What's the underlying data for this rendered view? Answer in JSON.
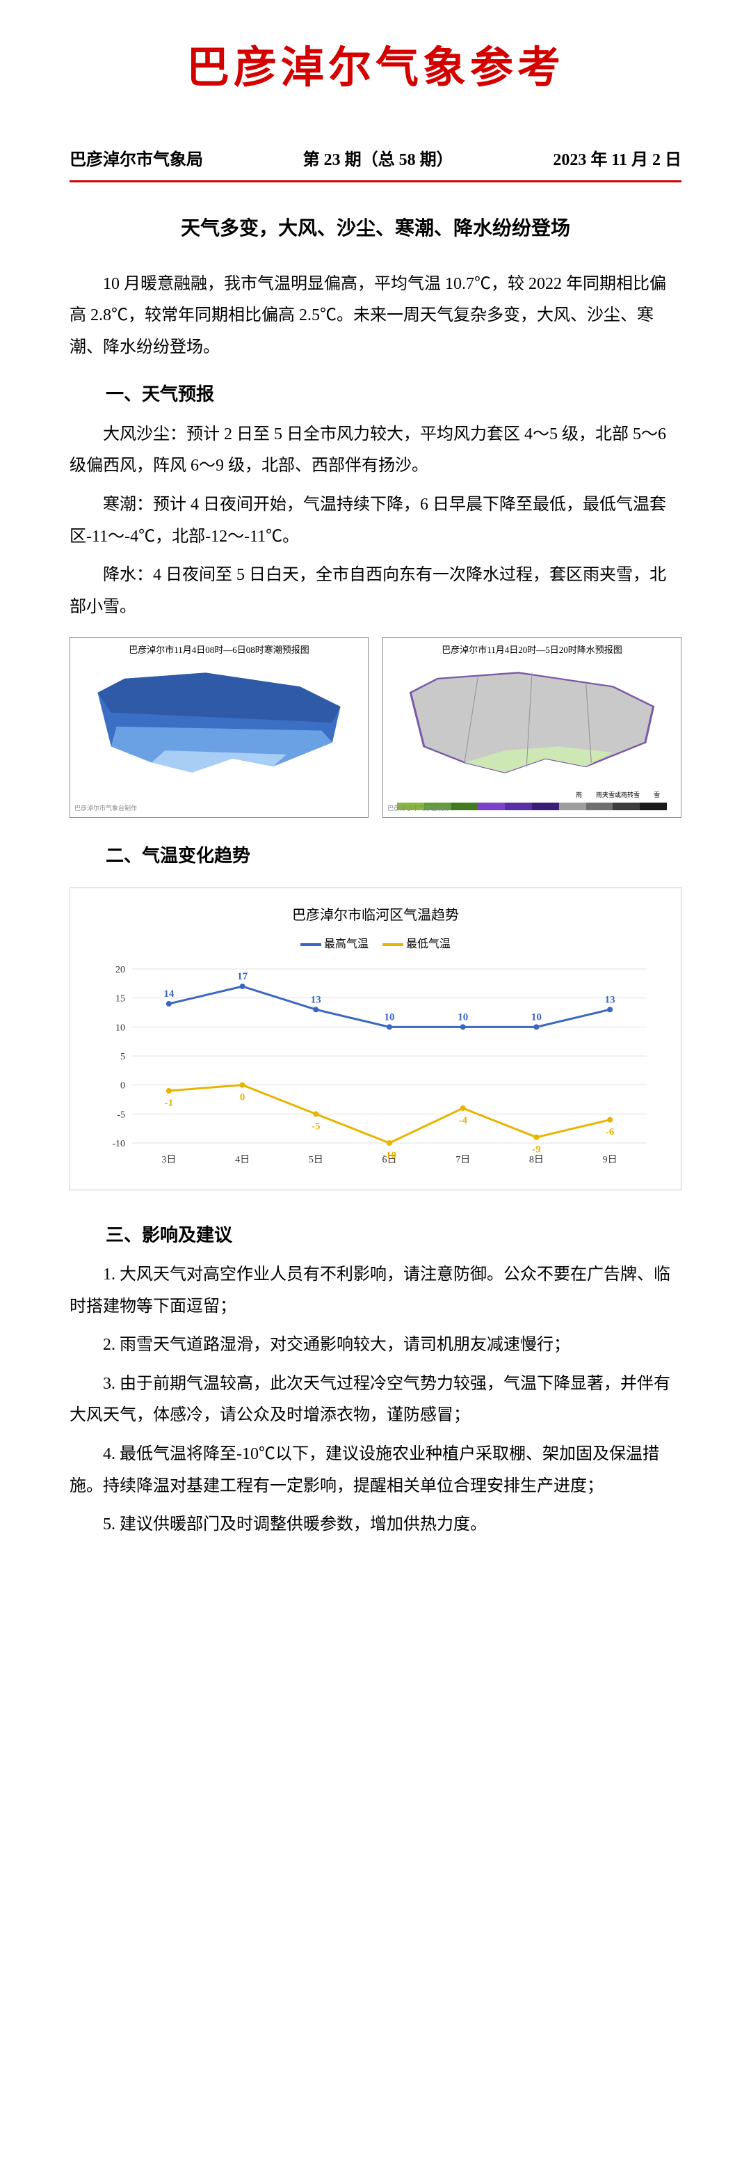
{
  "title": "巴彦淖尔气象参考",
  "meta": {
    "dept": "巴彦淖尔市气象局",
    "issue": "第 23 期（总 58 期）",
    "date": "2023 年 11 月 2 日"
  },
  "headline": "天气多变，大风、沙尘、寒潮、降水纷纷登场",
  "intro": "10 月暖意融融，我市气温明显偏高，平均气温 10.7℃，较 2022 年同期相比偏高 2.8℃，较常年同期相比偏高 2.5℃。未来一周天气复杂多变，大风、沙尘、寒潮、降水纷纷登场。",
  "sec1_heading": "一、天气预报",
  "sec1_p1": "大风沙尘：预计 2 日至 5 日全市风力较大，平均风力套区 4～5 级，北部 5～6 级偏西风，阵风 6～9 级，北部、西部伴有扬沙。",
  "sec1_p2": "寒潮：预计 4 日夜间开始，气温持续下降，6 日早晨下降至最低，最低气温套区-11～-4℃，北部-12～-11℃。",
  "sec1_p3": "降水：4 日夜间至 5 日白天，全市自西向东有一次降水过程，套区雨夹雪，北部小雪。",
  "map_left_title": "巴彦淖尔市11月4日08时—6日08时寒潮预报图",
  "map_right_title": "巴彦淖尔市11月4日20时—5日20时降水预报图",
  "map_left_colors": [
    "#2e5aa8",
    "#3a6fc4",
    "#4f86d6",
    "#6aa0e4",
    "#88b9ee",
    "#a9cef5"
  ],
  "map_right_bg": "#c9c9c9",
  "map_right_south": "#cde8b5",
  "map_legend_colors": [
    "#8ab93a",
    "#5c9e30",
    "#417a1f",
    "#7844c9",
    "#5a2fa3",
    "#3a1d78",
    "#9e9e9e",
    "#707070",
    "#3e3e3e",
    "#1a1a1a"
  ],
  "sec2_heading": "二、气温变化趋势",
  "chart": {
    "title": "巴彦淖尔市临河区气温趋势",
    "legend_high": "最高气温",
    "legend_low": "最低气温",
    "color_high": "#3a66c4",
    "color_low": "#e8b400",
    "grid_color": "#e0e0e0",
    "axis_color": "#333333",
    "categories": [
      "3日",
      "4日",
      "5日",
      "6日",
      "7日",
      "8日",
      "9日"
    ],
    "y_ticks": [
      -10,
      -5,
      0,
      5,
      10,
      15,
      20
    ],
    "high_values": [
      14,
      17,
      13,
      10,
      10,
      10,
      13
    ],
    "low_values": [
      -1,
      0,
      -5,
      -10,
      -4,
      -9,
      -6
    ]
  },
  "sec3_heading": "三、影响及建议",
  "advice": [
    "1. 大风天气对高空作业人员有不利影响，请注意防御。公众不要在广告牌、临时搭建物等下面逗留；",
    "2. 雨雪天气道路湿滑，对交通影响较大，请司机朋友减速慢行；",
    "3. 由于前期气温较高，此次天气过程冷空气势力较强，气温下降显著，并伴有大风天气，体感冷，请公众及时增添衣物，谨防感冒；",
    "4. 最低气温将降至-10℃以下，建议设施农业种植户采取棚、架加固及保温措施。持续降温对基建工程有一定影响，提醒相关单位合理安排生产进度；",
    "5. 建议供暖部门及时调整供暖参数，增加供热力度。"
  ]
}
